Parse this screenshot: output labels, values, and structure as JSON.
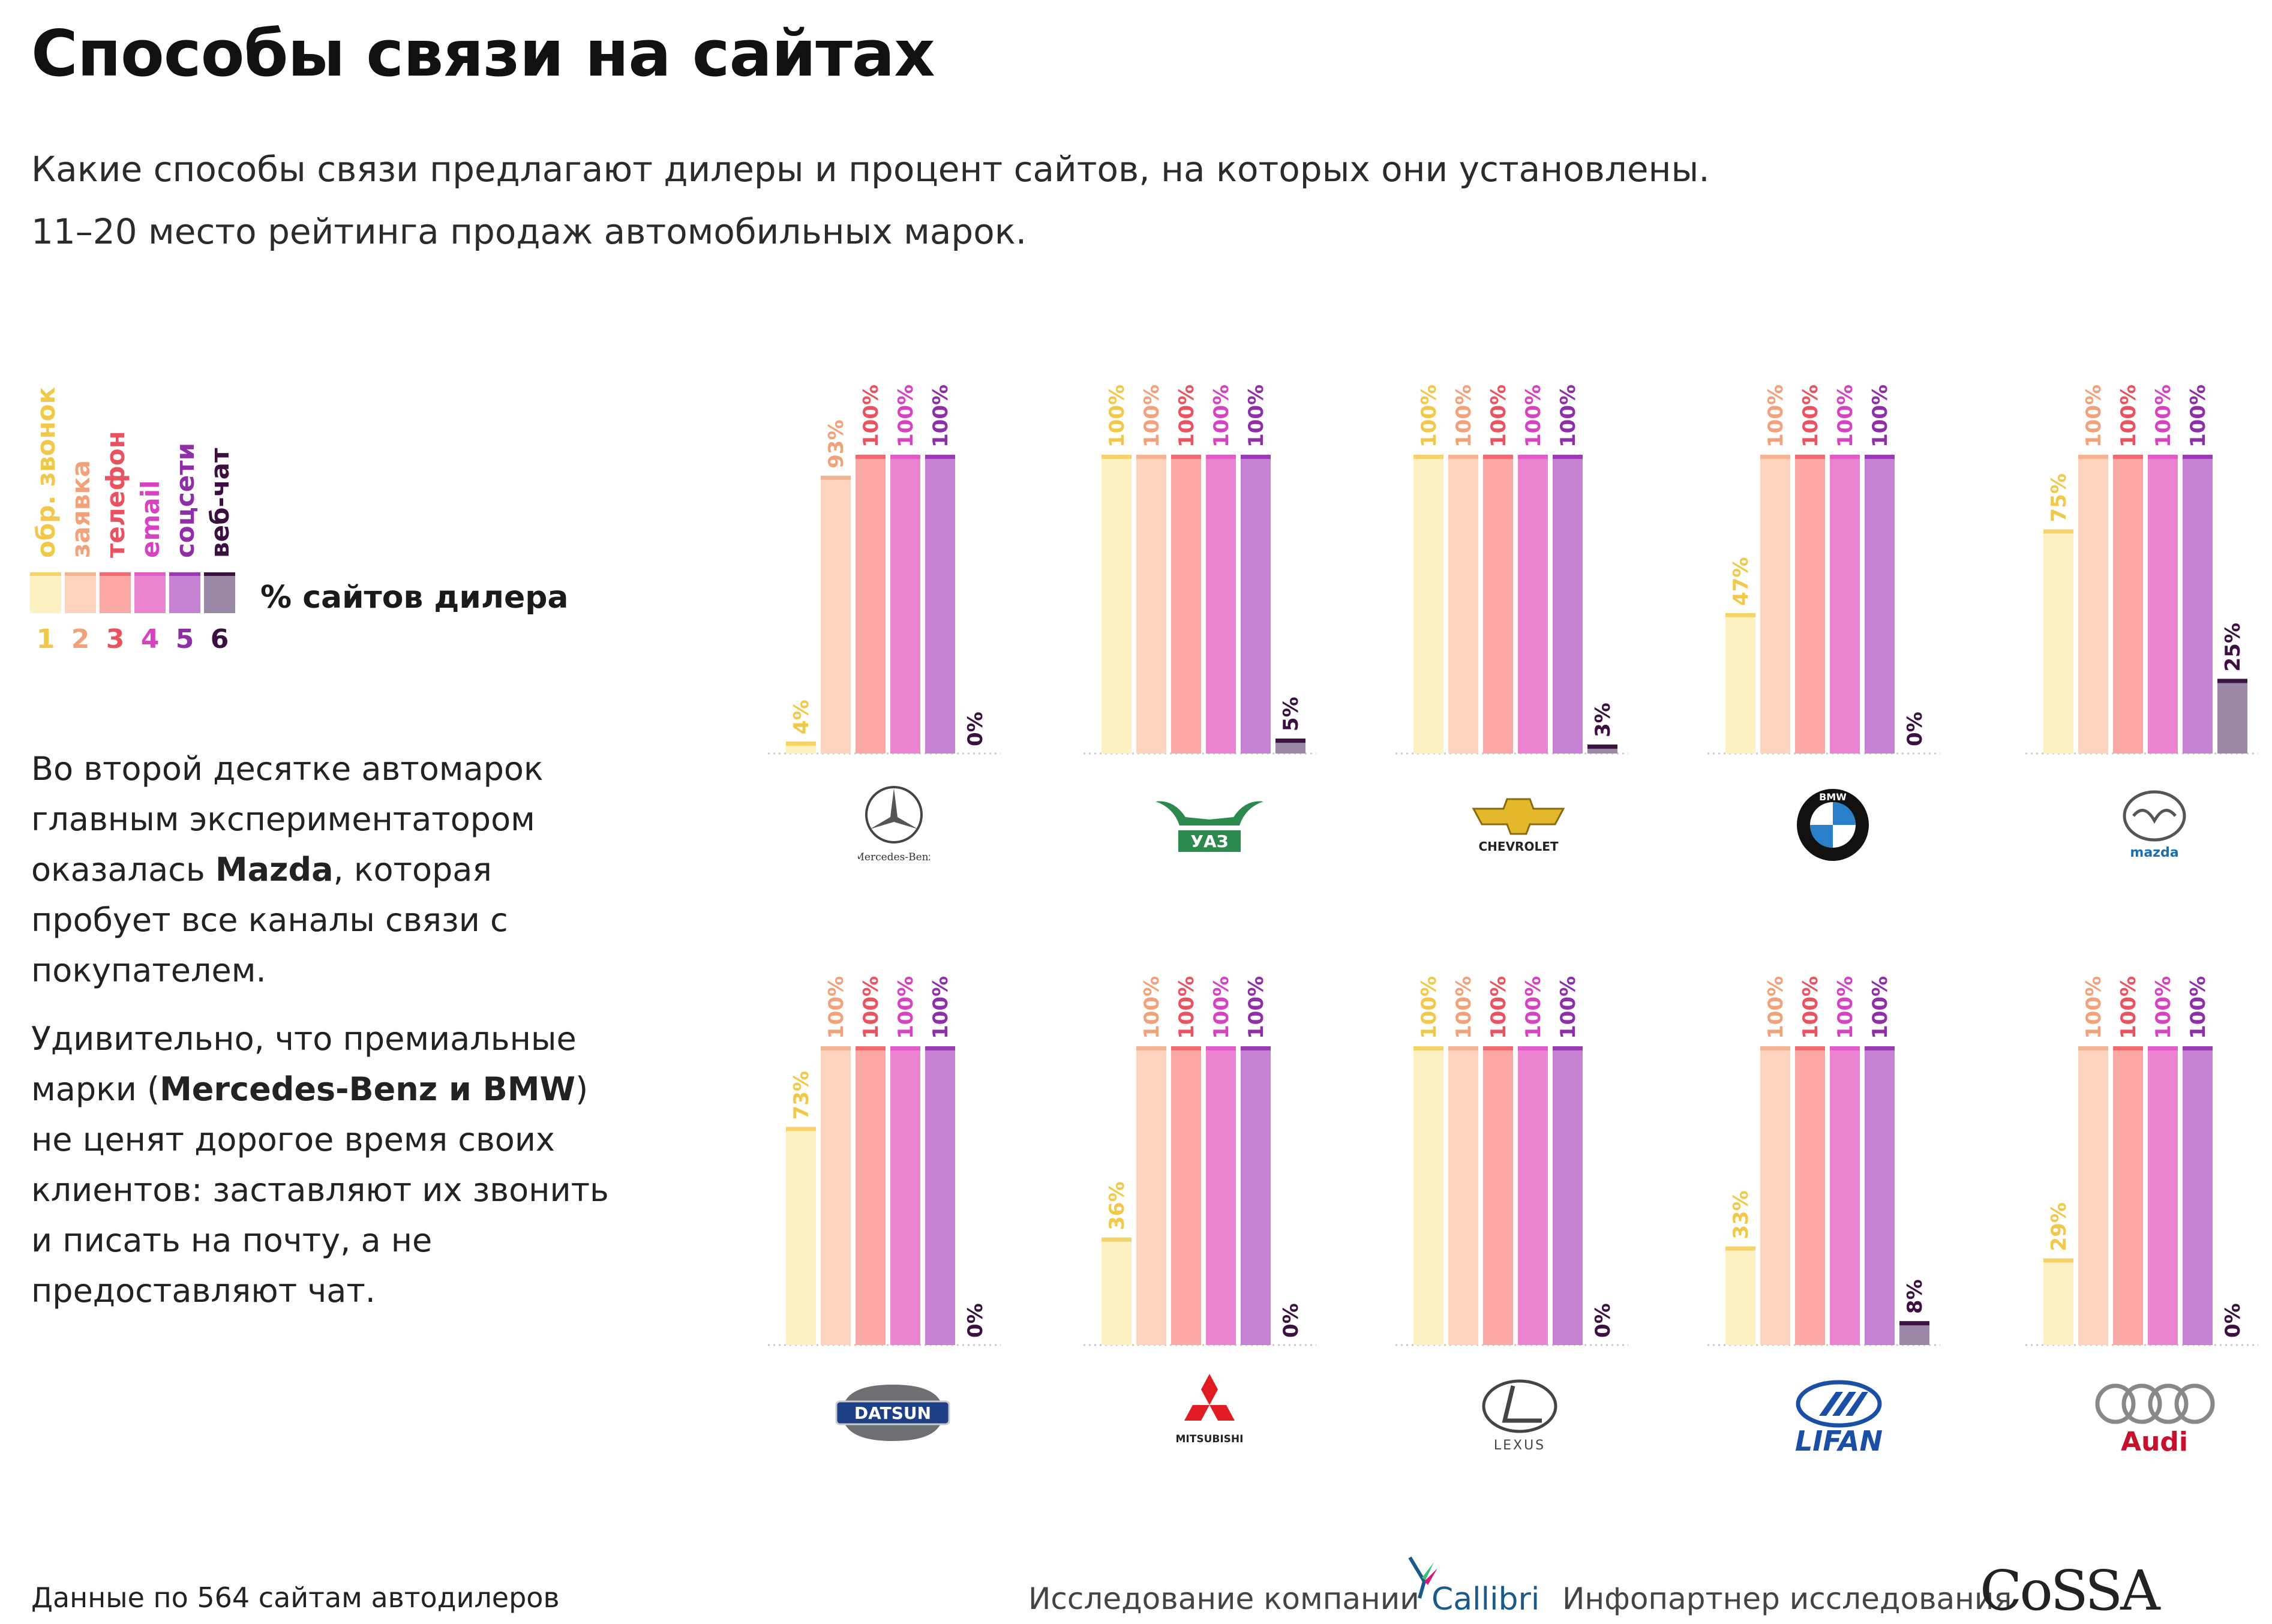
{
  "title": "Способы связи на сайтах",
  "subtitle_line1": "Какие способы связи предлагают дилеры и процент сайтов, на которых они установлены.",
  "subtitle_line2": "11–20 место рейтинга продаж автомобильных марок.",
  "legend": {
    "items": [
      {
        "label": "обр. звонок",
        "num": "1",
        "text_color": "#f2c84b",
        "swatch": "#fdf1c4"
      },
      {
        "label": "заявка",
        "num": "2",
        "text_color": "#f1a27a",
        "swatch": "#fcd3bc"
      },
      {
        "label": "телефон",
        "num": "3",
        "text_color": "#e9525f",
        "swatch": "#fba7a5"
      },
      {
        "label": "email",
        "num": "4",
        "text_color": "#d642c0",
        "swatch": "#ea84d0"
      },
      {
        "label": "соцсети",
        "num": "5",
        "text_color": "#8e2fa8",
        "swatch": "#c582d3"
      },
      {
        "label": "веб-чат",
        "num": "6",
        "text_color": "#3b1040",
        "swatch": "#9a88a6"
      }
    ],
    "caption": "% сайтов дилера"
  },
  "paragraph1": {
    "pre": "Во второй десятке автомарок главным экспериментатором оказалась ",
    "bold": "Mazda",
    "post": ", которая пробует все каналы связи с покупателем."
  },
  "paragraph2": {
    "pre": "Удивительно, что премиальные марки (",
    "bold": "Mercedes-Benz и BMW",
    "post": ") не ценят дорогое время своих клиентов: заставляют их звонить и писать на почту, а не предоставляют чат."
  },
  "chart_data": {
    "type": "bar",
    "categories": [
      "обр. звонок",
      "заявка",
      "телефон",
      "email",
      "соцсети",
      "веб-чат"
    ],
    "unit": "%",
    "ylim": [
      0,
      100
    ],
    "colors": {
      "fill": [
        "#fdf1c4",
        "#fcd3bc",
        "#fba7a5",
        "#ea84d0",
        "#c582d3",
        "#9a88a6"
      ],
      "top": [
        "#f6d36a",
        "#f4b393",
        "#f06a72",
        "#e05cc6",
        "#9a3ab5",
        "#3d1142"
      ],
      "label": [
        "#f2c84b",
        "#f1a27a",
        "#e9525f",
        "#d642c0",
        "#8e2fa8",
        "#3b1040"
      ]
    },
    "brands": [
      {
        "name": "Mercedes-Benz",
        "values": [
          4,
          93,
          100,
          100,
          100,
          0
        ]
      },
      {
        "name": "УАЗ",
        "values": [
          100,
          100,
          100,
          100,
          100,
          5
        ]
      },
      {
        "name": "Chevrolet",
        "values": [
          100,
          100,
          100,
          100,
          100,
          3
        ]
      },
      {
        "name": "BMW",
        "values": [
          47,
          100,
          100,
          100,
          100,
          0
        ]
      },
      {
        "name": "Mazda",
        "values": [
          75,
          100,
          100,
          100,
          100,
          25
        ]
      },
      {
        "name": "Datsun",
        "values": [
          73,
          100,
          100,
          100,
          100,
          0
        ]
      },
      {
        "name": "Mitsubishi",
        "values": [
          36,
          100,
          100,
          100,
          100,
          0
        ]
      },
      {
        "name": "Lexus",
        "values": [
          100,
          100,
          100,
          100,
          100,
          0
        ]
      },
      {
        "name": "Lifan",
        "values": [
          33,
          100,
          100,
          100,
          100,
          8
        ]
      },
      {
        "name": "Audi",
        "values": [
          29,
          100,
          100,
          100,
          100,
          0
        ]
      }
    ]
  },
  "logos": {
    "mercedes": "Mercedes-Benz",
    "uaz": "УАЗ",
    "chevrolet": "CHEVROLET",
    "bmw": "BMW",
    "mazda": "mazda",
    "datsun": "DATSUN",
    "mitsubishi": "MITSUBISHI",
    "lexus": "LEXUS",
    "lifan": "LIFAN",
    "audi": "Audi"
  },
  "footer": {
    "data_note": "Данные по 564 сайтам автодилеров",
    "research": "Исследование компании",
    "callibri": "Callibri",
    "infopartner": "Инфопартнер исследования",
    "cossa": "CoSSA"
  }
}
